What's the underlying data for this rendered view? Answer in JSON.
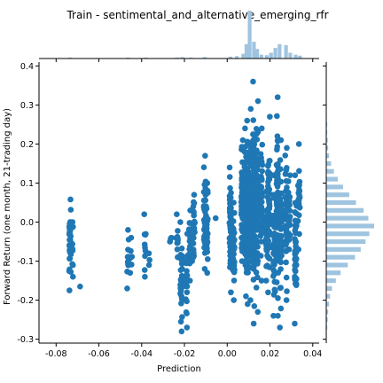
{
  "chart_data": {
    "type": "scatter",
    "title": "Train - sentimental_and_alternative_emerging_rfr",
    "xlabel": "Prediction",
    "ylabel": "Forward Return (one month, 21-trading day)",
    "xlim": [
      -0.088,
      0.043
    ],
    "ylim": [
      -0.31,
      0.41
    ],
    "x_ticks": [
      "-0.08",
      "-0.06",
      "-0.04",
      "-0.02",
      "0.00",
      "0.02",
      "0.04"
    ],
    "y_ticks": [
      "-0.3",
      "-0.2",
      "-0.1",
      "0.0",
      "0.1",
      "0.2",
      "0.3",
      "0.4"
    ],
    "x_tick_values": [
      -0.08,
      -0.06,
      -0.04,
      -0.02,
      0.0,
      0.02,
      0.04
    ],
    "y_tick_values": [
      -0.3,
      -0.2,
      -0.1,
      0.0,
      0.1,
      0.2,
      0.3,
      0.4
    ],
    "point_color": "#1f77b4",
    "hist_color": "#9fc4e0",
    "grid": false,
    "marginal_histograms": [
      "top",
      "right"
    ],
    "clusters": [
      {
        "x": -0.0735,
        "y_min": -0.175,
        "y_max": 0.058,
        "count": 30
      },
      {
        "x": -0.0725,
        "y_min": -0.14,
        "y_max": 0.0,
        "count": 10
      },
      {
        "x": -0.069,
        "y_min": -0.165,
        "y_max": -0.165,
        "count": 1
      },
      {
        "x": -0.0465,
        "y_min": -0.17,
        "y_max": -0.02,
        "count": 12
      },
      {
        "x": -0.045,
        "y_min": -0.13,
        "y_max": -0.04,
        "count": 6
      },
      {
        "x": -0.0385,
        "y_min": -0.14,
        "y_max": 0.02,
        "count": 10
      },
      {
        "x": -0.0365,
        "y_min": -0.11,
        "y_max": -0.08,
        "count": 3
      },
      {
        "x": -0.0265,
        "y_min": -0.05,
        "y_max": -0.04,
        "count": 3
      },
      {
        "x": -0.0235,
        "y_min": -0.09,
        "y_max": 0.02,
        "count": 10
      },
      {
        "x": -0.0215,
        "y_min": -0.28,
        "y_max": 0.0,
        "count": 30
      },
      {
        "x": -0.019,
        "y_min": -0.27,
        "y_max": -0.03,
        "count": 25
      },
      {
        "x": -0.0175,
        "y_min": -0.15,
        "y_max": 0.03,
        "count": 15
      },
      {
        "x": -0.016,
        "y_min": -0.1,
        "y_max": 0.04,
        "count": 15
      },
      {
        "x": -0.0155,
        "y_min": -0.09,
        "y_max": 0.07,
        "count": 15
      },
      {
        "x": -0.0105,
        "y_min": -0.12,
        "y_max": 0.17,
        "count": 35
      },
      {
        "x": -0.0095,
        "y_min": -0.13,
        "y_max": 0.1,
        "count": 25
      },
      {
        "x": -0.0055,
        "y_min": 0.01,
        "y_max": 0.01,
        "count": 1
      },
      {
        "x": 0.0015,
        "y_min": -0.18,
        "y_max": 0.14,
        "count": 60
      },
      {
        "x": 0.003,
        "y_min": -0.2,
        "y_max": 0.05,
        "count": 40
      },
      {
        "x": 0.007,
        "y_min": -0.1,
        "y_max": 0.21,
        "count": 60
      },
      {
        "x": 0.0085,
        "y_min": -0.19,
        "y_max": 0.24,
        "count": 80
      },
      {
        "x": 0.0095,
        "y_min": -0.21,
        "y_max": 0.26,
        "count": 80
      },
      {
        "x": 0.011,
        "y_min": -0.2,
        "y_max": 0.29,
        "count": 70
      },
      {
        "x": 0.0125,
        "y_min": -0.26,
        "y_max": 0.36,
        "count": 90
      },
      {
        "x": 0.014,
        "y_min": -0.23,
        "y_max": 0.31,
        "count": 70
      },
      {
        "x": 0.016,
        "y_min": -0.15,
        "y_max": 0.24,
        "count": 50
      },
      {
        "x": 0.0185,
        "y_min": -0.15,
        "y_max": 0.08,
        "count": 40
      },
      {
        "x": 0.0195,
        "y_min": -0.18,
        "y_max": 0.27,
        "count": 50
      },
      {
        "x": 0.022,
        "y_min": -0.24,
        "y_max": 0.12,
        "count": 50
      },
      {
        "x": 0.0235,
        "y_min": -0.24,
        "y_max": 0.32,
        "count": 70
      },
      {
        "x": 0.025,
        "y_min": -0.27,
        "y_max": 0.21,
        "count": 50
      },
      {
        "x": 0.0275,
        "y_min": -0.2,
        "y_max": 0.19,
        "count": 40
      },
      {
        "x": 0.029,
        "y_min": -0.07,
        "y_max": 0.12,
        "count": 20
      },
      {
        "x": 0.032,
        "y_min": -0.26,
        "y_max": 0.12,
        "count": 45
      },
      {
        "x": 0.0335,
        "y_min": -0.07,
        "y_max": 0.2,
        "count": 25
      }
    ],
    "top_histogram": {
      "bins": [
        -0.0735,
        -0.0465,
        -0.038,
        -0.0235,
        -0.021,
        -0.017,
        -0.0105,
        -0.0055,
        0.0015,
        0.0045,
        0.0075,
        0.009,
        0.0105,
        0.0125,
        0.014,
        0.016,
        0.0185,
        0.0205,
        0.0225,
        0.0245,
        0.0275,
        0.0295,
        0.032,
        0.034
      ],
      "heights": [
        0.02,
        0.02,
        0.02,
        0.02,
        0.03,
        0.02,
        0.03,
        0.01,
        0.04,
        0.05,
        0.1,
        0.3,
        1.0,
        0.35,
        0.2,
        0.08,
        0.07,
        0.12,
        0.22,
        0.3,
        0.28,
        0.12,
        0.08,
        0.06
      ]
    },
    "right_histogram": {
      "bins": [
        -0.29,
        -0.27,
        -0.25,
        -0.23,
        -0.21,
        -0.19,
        -0.17,
        -0.15,
        -0.13,
        -0.11,
        -0.09,
        -0.07,
        -0.05,
        -0.03,
        -0.01,
        0.01,
        0.03,
        0.05,
        0.07,
        0.09,
        0.11,
        0.13,
        0.15,
        0.17,
        0.19,
        0.21,
        0.23,
        0.25,
        0.27,
        0.29
      ],
      "heights": [
        0.01,
        0.02,
        0.03,
        0.04,
        0.06,
        0.08,
        0.12,
        0.2,
        0.3,
        0.45,
        0.6,
        0.72,
        0.82,
        0.9,
        1.0,
        0.88,
        0.78,
        0.62,
        0.48,
        0.35,
        0.24,
        0.16,
        0.1,
        0.06,
        0.04,
        0.03,
        0.02,
        0.02,
        0.01,
        0.01
      ]
    }
  }
}
